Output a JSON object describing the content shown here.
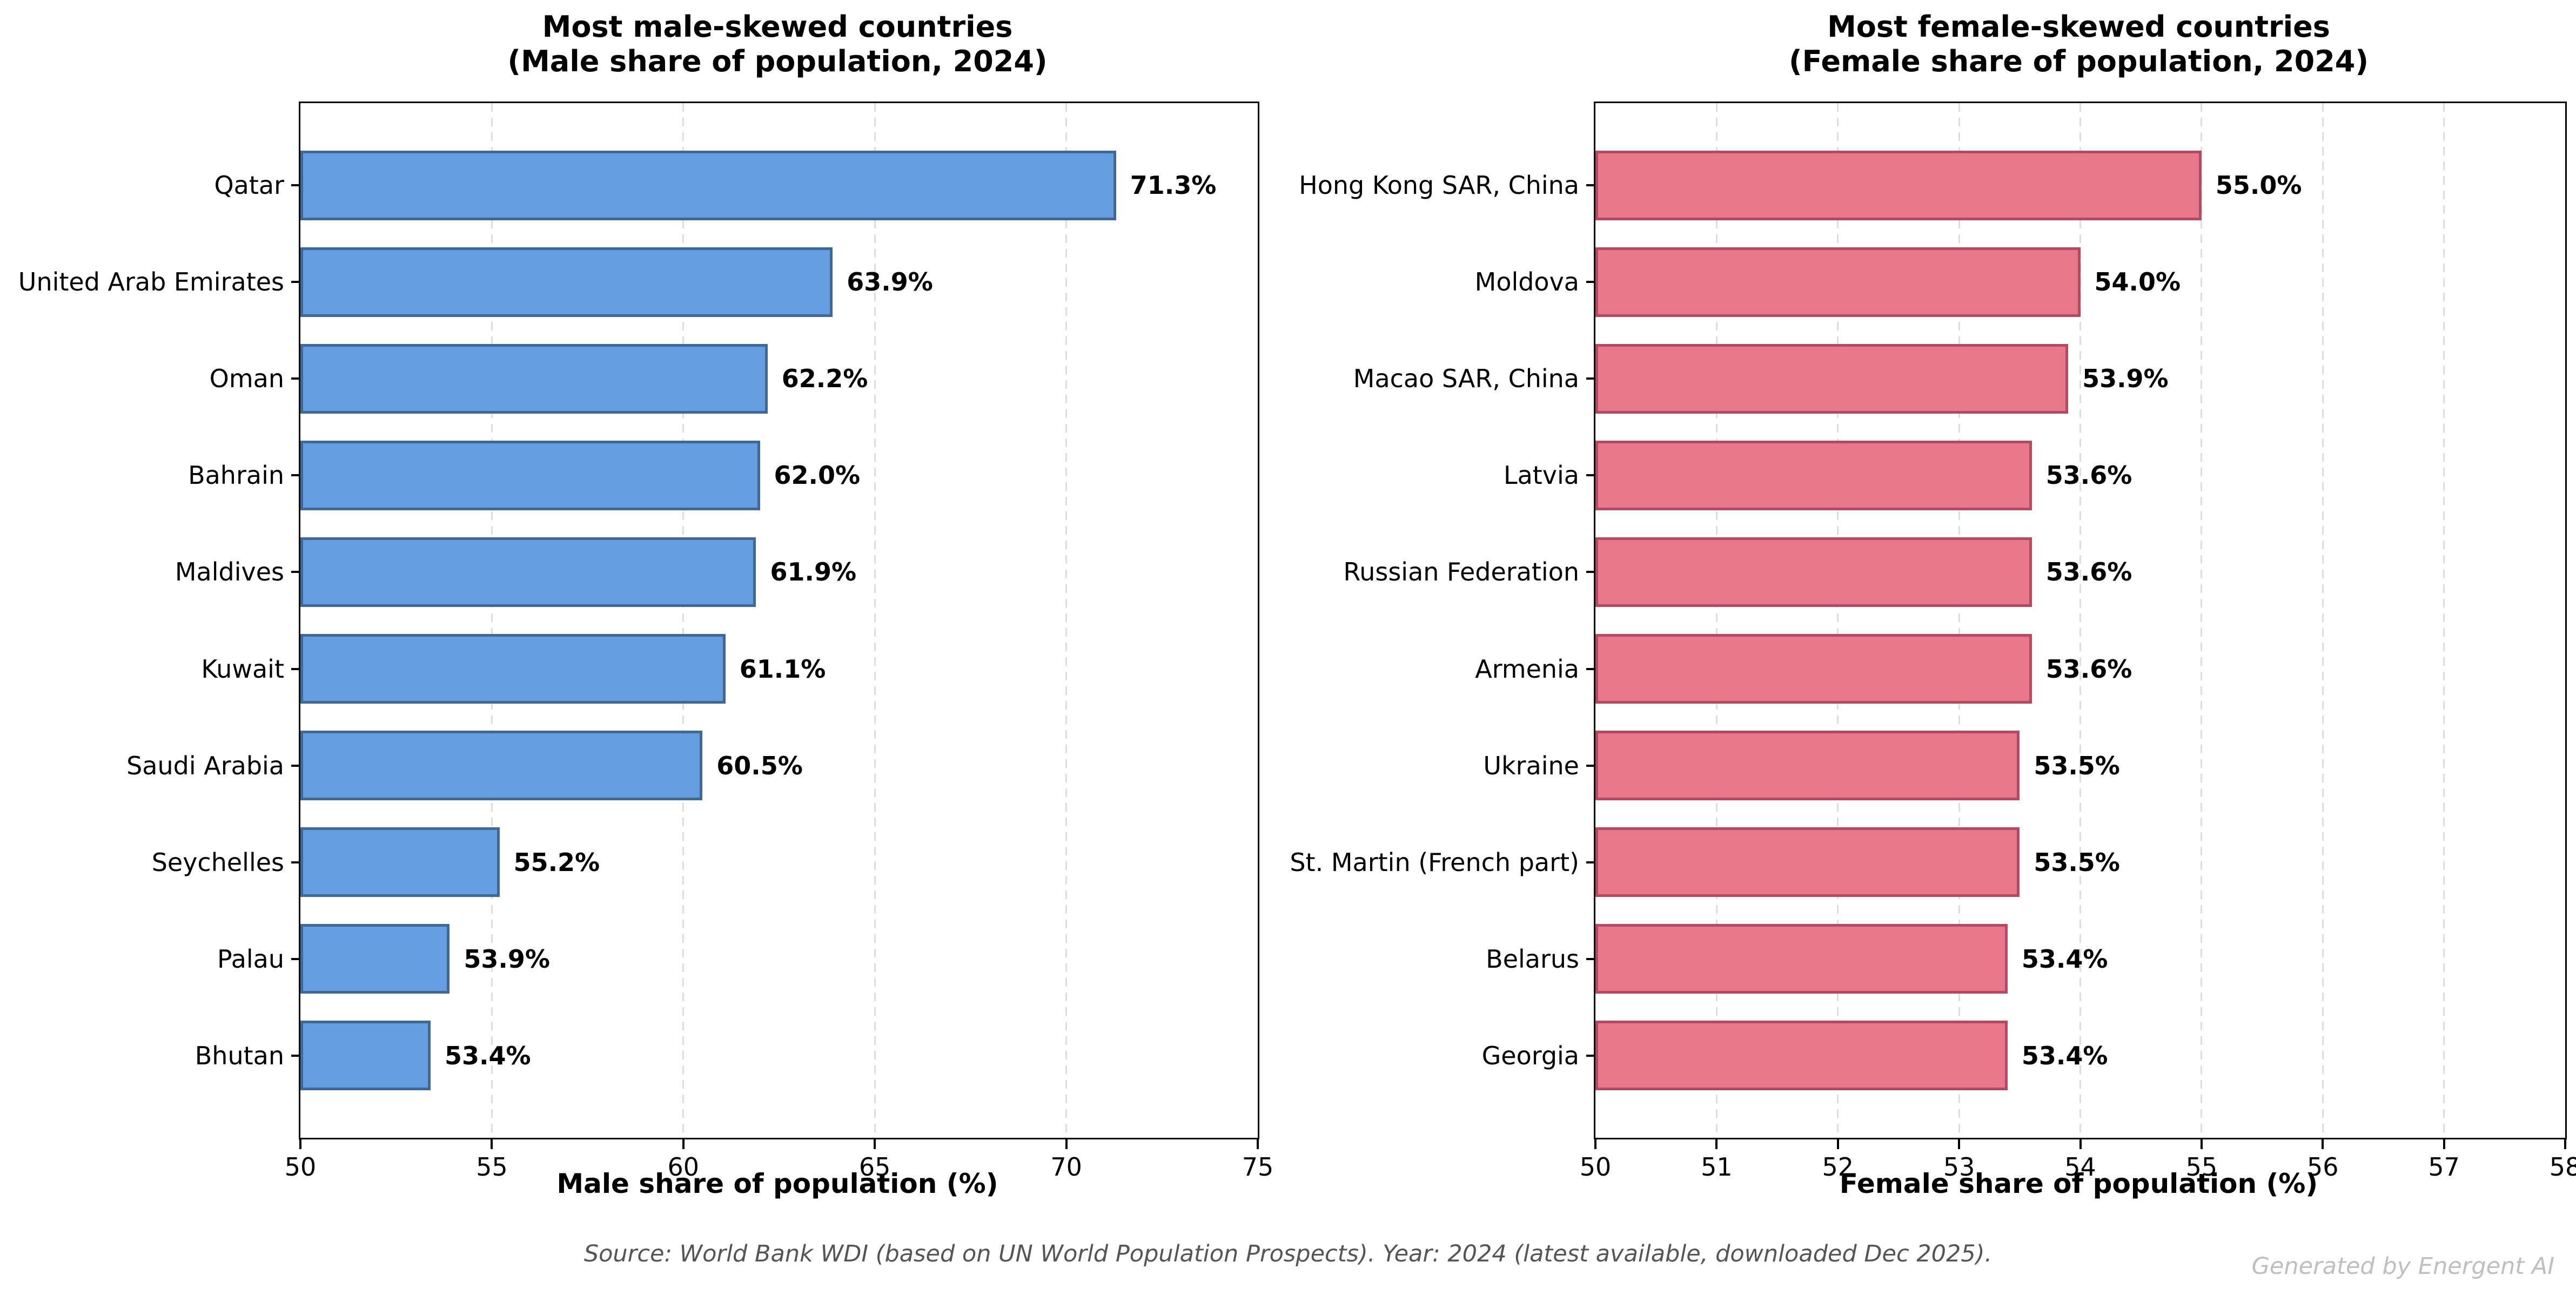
{
  "figure": {
    "background": "#ffffff",
    "source_note": "Source: World Bank WDI (based on UN World Population Prospects). Year: 2024 (latest available, downloaded Dec 2025).",
    "watermark": "Generated by Energent AI"
  },
  "chart_data": [
    {
      "type": "bar",
      "orientation": "horizontal",
      "title": "Most male-skewed countries\n(Male share of population, 2024)",
      "title_line1": "Most male-skewed countries",
      "title_line2": "(Male share of population, 2024)",
      "xlabel": "Male share of population (%)",
      "categories": [
        "Qatar",
        "United Arab Emirates",
        "Oman",
        "Bahrain",
        "Maldives",
        "Kuwait",
        "Saudi Arabia",
        "Seychelles",
        "Palau",
        "Bhutan"
      ],
      "values": [
        71.3,
        63.9,
        62.2,
        62.0,
        61.9,
        61.1,
        60.5,
        55.2,
        53.9,
        53.4
      ],
      "value_labels": [
        "71.3%",
        "63.9%",
        "62.2%",
        "62.0%",
        "61.9%",
        "61.1%",
        "60.5%",
        "55.2%",
        "53.9%",
        "53.4%"
      ],
      "xlim": [
        50,
        75
      ],
      "xticks": [
        50,
        55,
        60,
        65,
        70,
        75
      ],
      "bar_color": "#639EE0",
      "bar_edge_color": "#406894",
      "grid": "vertical-dashed",
      "legend": "none"
    },
    {
      "type": "bar",
      "orientation": "horizontal",
      "title": "Most female-skewed countries\n(Female share of population, 2024)",
      "title_line1": "Most female-skewed countries",
      "title_line2": "(Female share of population, 2024)",
      "xlabel": "Female share of population (%)",
      "categories": [
        "Hong Kong SAR, China",
        "Moldova",
        "Macao SAR, China",
        "Latvia",
        "Russian Federation",
        "Armenia",
        "Ukraine",
        "St. Martin (French part)",
        "Belarus",
        "Georgia"
      ],
      "values": [
        55.0,
        54.0,
        53.9,
        53.6,
        53.6,
        53.6,
        53.5,
        53.5,
        53.4,
        53.4
      ],
      "value_labels": [
        "55.0%",
        "54.0%",
        "53.9%",
        "53.6%",
        "53.6%",
        "53.6%",
        "53.5%",
        "53.5%",
        "53.4%",
        "53.4%"
      ],
      "xlim": [
        50,
        58
      ],
      "xticks": [
        50,
        51,
        52,
        53,
        54,
        55,
        56,
        57,
        58
      ],
      "bar_color": "#E9778B",
      "bar_edge_color": "#B24A60",
      "grid": "vertical-dashed",
      "legend": "none"
    }
  ]
}
